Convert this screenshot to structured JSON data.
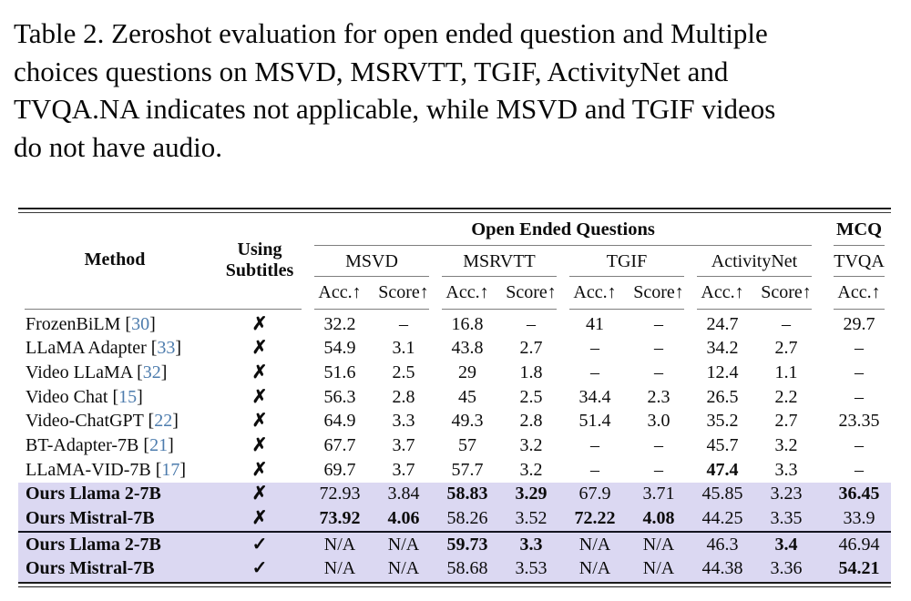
{
  "caption": {
    "lines": [
      "Table 2. Zeroshot evaluation for open ended question and Multiple",
      "choices questions on MSVD, MSRVTT, TGIF, ActivityNet and",
      "TVQA.NA indicates not applicable, while MSVD and TGIF videos",
      "do not have audio."
    ]
  },
  "table": {
    "header": {
      "method": "Method",
      "subtitles_line1": "Using",
      "subtitles_line2": "Subtitles",
      "group_open": "Open Ended Questions",
      "group_mcq": "MCQ",
      "datasets": [
        "MSVD",
        "MSRVTT",
        "TGIF",
        "ActivityNet"
      ],
      "mcq_dataset": "TVQA",
      "acc": "Acc.↑",
      "score": "Score↑"
    },
    "marks": {
      "no": "✗",
      "yes": "✓"
    },
    "colors": {
      "highlight": "#dbd8f2",
      "citation_blue": "#4d7cad",
      "rule_gray": "#7e7e7e",
      "rule_dark": "#1b1b1b"
    },
    "rows": [
      {
        "method": "FrozenBiLM",
        "cite": "30",
        "bold_method": false,
        "subtitles": "✗",
        "highlight": false,
        "sep": false,
        "cells": [
          {
            "t": "32.2"
          },
          {
            "t": "–"
          },
          {
            "t": "16.8"
          },
          {
            "t": "–"
          },
          {
            "t": "41"
          },
          {
            "t": "–"
          },
          {
            "t": "24.7"
          },
          {
            "t": "–"
          },
          {
            "t": "29.7"
          }
        ]
      },
      {
        "method": "LLaMA Adapter",
        "cite": "33",
        "bold_method": false,
        "subtitles": "✗",
        "highlight": false,
        "sep": false,
        "cells": [
          {
            "t": "54.9"
          },
          {
            "t": "3.1"
          },
          {
            "t": "43.8"
          },
          {
            "t": "2.7"
          },
          {
            "t": "–"
          },
          {
            "t": "–"
          },
          {
            "t": "34.2"
          },
          {
            "t": "2.7"
          },
          {
            "t": "–"
          }
        ]
      },
      {
        "method": "Video LLaMA",
        "cite": "32",
        "bold_method": false,
        "subtitles": "✗",
        "highlight": false,
        "sep": false,
        "cells": [
          {
            "t": "51.6"
          },
          {
            "t": "2.5"
          },
          {
            "t": "29"
          },
          {
            "t": "1.8"
          },
          {
            "t": "–"
          },
          {
            "t": "–"
          },
          {
            "t": "12.4"
          },
          {
            "t": "1.1"
          },
          {
            "t": "–"
          }
        ]
      },
      {
        "method": "Video Chat",
        "cite": "15",
        "bold_method": false,
        "subtitles": "✗",
        "highlight": false,
        "sep": false,
        "cells": [
          {
            "t": "56.3"
          },
          {
            "t": "2.8"
          },
          {
            "t": "45"
          },
          {
            "t": "2.5"
          },
          {
            "t": "34.4"
          },
          {
            "t": "2.3"
          },
          {
            "t": "26.5"
          },
          {
            "t": "2.2"
          },
          {
            "t": "–"
          }
        ]
      },
      {
        "method": "Video-ChatGPT",
        "cite": "22",
        "bold_method": false,
        "subtitles": "✗",
        "highlight": false,
        "sep": false,
        "cells": [
          {
            "t": "64.9"
          },
          {
            "t": "3.3"
          },
          {
            "t": "49.3"
          },
          {
            "t": "2.8"
          },
          {
            "t": "51.4"
          },
          {
            "t": "3.0"
          },
          {
            "t": "35.2"
          },
          {
            "t": "2.7"
          },
          {
            "t": "23.35"
          }
        ]
      },
      {
        "method": "BT-Adapter-7B",
        "cite": "21",
        "bold_method": false,
        "subtitles": "✗",
        "highlight": false,
        "sep": false,
        "cells": [
          {
            "t": "67.7"
          },
          {
            "t": "3.7"
          },
          {
            "t": "57"
          },
          {
            "t": "3.2"
          },
          {
            "t": "–"
          },
          {
            "t": "–"
          },
          {
            "t": "45.7"
          },
          {
            "t": "3.2"
          },
          {
            "t": "–"
          }
        ]
      },
      {
        "method": "LLaMA-VID-7B",
        "cite": "17",
        "bold_method": false,
        "subtitles": "✗",
        "highlight": false,
        "sep": false,
        "cells": [
          {
            "t": "69.7"
          },
          {
            "t": "3.7"
          },
          {
            "t": "57.7"
          },
          {
            "t": "3.2"
          },
          {
            "t": "–"
          },
          {
            "t": "–"
          },
          {
            "t": "47.4",
            "b": true
          },
          {
            "t": "3.3"
          },
          {
            "t": "–"
          }
        ]
      },
      {
        "method": "Ours Llama 2-7B",
        "cite": null,
        "bold_method": true,
        "subtitles": "✗",
        "highlight": true,
        "sep": false,
        "cells": [
          {
            "t": "72.93"
          },
          {
            "t": "3.84"
          },
          {
            "t": "58.83",
            "b": true
          },
          {
            "t": "3.29",
            "b": true
          },
          {
            "t": "67.9"
          },
          {
            "t": "3.71"
          },
          {
            "t": "45.85"
          },
          {
            "t": "3.23"
          },
          {
            "t": "36.45",
            "b": true
          }
        ]
      },
      {
        "method": "Ours Mistral-7B",
        "cite": null,
        "bold_method": true,
        "subtitles": "✗",
        "highlight": true,
        "sep": false,
        "cells": [
          {
            "t": "73.92",
            "b": true
          },
          {
            "t": "4.06",
            "b": true
          },
          {
            "t": "58.26"
          },
          {
            "t": "3.52"
          },
          {
            "t": "72.22",
            "b": true
          },
          {
            "t": "4.08",
            "b": true
          },
          {
            "t": "44.25"
          },
          {
            "t": "3.35"
          },
          {
            "t": "33.9"
          }
        ]
      },
      {
        "method": "Ours Llama 2-7B",
        "cite": null,
        "bold_method": true,
        "subtitles": "✓",
        "highlight": true,
        "sep": true,
        "cells": [
          {
            "t": "N/A"
          },
          {
            "t": "N/A"
          },
          {
            "t": "59.73",
            "b": true
          },
          {
            "t": "3.3",
            "b": true
          },
          {
            "t": "N/A"
          },
          {
            "t": "N/A"
          },
          {
            "t": "46.3"
          },
          {
            "t": "3.4",
            "b": true
          },
          {
            "t": "46.94"
          }
        ]
      },
      {
        "method": "Ours Mistral-7B",
        "cite": null,
        "bold_method": true,
        "subtitles": "✓",
        "highlight": true,
        "sep": false,
        "cells": [
          {
            "t": "N/A"
          },
          {
            "t": "N/A"
          },
          {
            "t": "58.68"
          },
          {
            "t": "3.53"
          },
          {
            "t": "N/A"
          },
          {
            "t": "N/A"
          },
          {
            "t": "44.38"
          },
          {
            "t": "3.36"
          },
          {
            "t": "54.21",
            "b": true
          }
        ]
      }
    ]
  }
}
